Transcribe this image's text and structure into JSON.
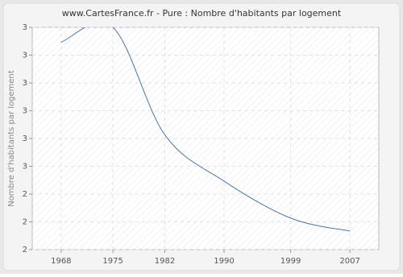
{
  "chart_data": {
    "type": "line",
    "title": "www.CartesFrance.fr - Pure : Nombre d'habitants par logement",
    "y_label": "Nombre d'habitants par logement",
    "x": [
      1968,
      1975,
      1982,
      1990,
      1999,
      2007
    ],
    "series": [
      {
        "name": "Pure",
        "color": "#4a77a8",
        "values": [
          3.22,
          3.3,
          2.72,
          2.47,
          2.27,
          2.2
        ]
      }
    ],
    "xlim": [
      1964.1,
      2010.9
    ],
    "xticks": [
      1968,
      1975,
      1982,
      1990,
      1999,
      2007
    ],
    "ylim": [
      2.1,
      3.3
    ],
    "yticks": [
      {
        "value": 2.1,
        "label": "2"
      },
      {
        "value": 2.25,
        "label": "2"
      },
      {
        "value": 2.4,
        "label": "2"
      },
      {
        "value": 2.55,
        "label": "3"
      },
      {
        "value": 2.7,
        "label": "3"
      },
      {
        "value": 2.85,
        "label": "3"
      },
      {
        "value": 3.0,
        "label": "3"
      },
      {
        "value": 3.15,
        "label": "3"
      },
      {
        "value": 3.3,
        "label": "3"
      }
    ],
    "grid": true
  }
}
